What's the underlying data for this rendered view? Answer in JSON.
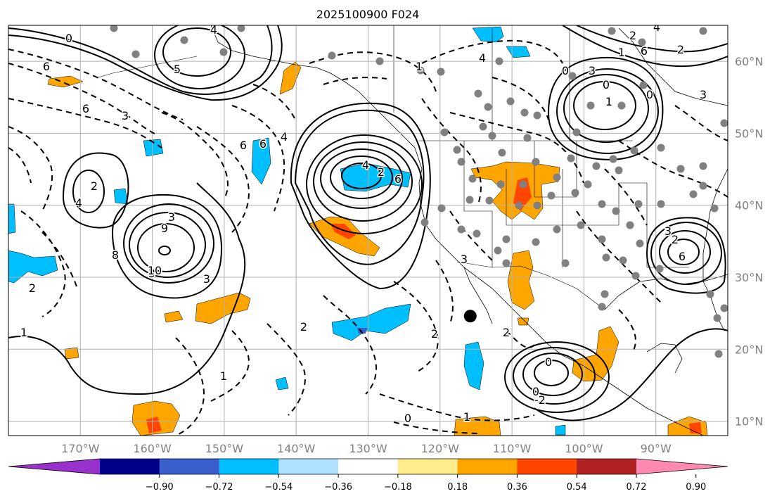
{
  "title": "2025100900 F024",
  "map": {
    "lon_range": [
      -180,
      -80
    ],
    "lat_range": [
      8,
      65
    ],
    "lon_ticks": [
      {
        "value": -170,
        "label": "170°W"
      },
      {
        "value": -160,
        "label": "160°W"
      },
      {
        "value": -150,
        "label": "150°W"
      },
      {
        "value": -140,
        "label": "140°W"
      },
      {
        "value": -130,
        "label": "130°W"
      },
      {
        "value": -120,
        "label": "120°W"
      },
      {
        "value": -110,
        "label": "110°W"
      },
      {
        "value": -100,
        "label": "100°W"
      },
      {
        "value": -90,
        "label": "90°W"
      }
    ],
    "lat_ticks": [
      {
        "value": 10,
        "label": "10°N"
      },
      {
        "value": 20,
        "label": "20°N"
      },
      {
        "value": 30,
        "label": "30°N"
      },
      {
        "value": 40,
        "label": "40°N"
      },
      {
        "value": 50,
        "label": "50°N"
      },
      {
        "value": 60,
        "label": "60°N"
      }
    ],
    "grid": true,
    "marker": {
      "lon": -115.8,
      "lat": 24.6
    }
  },
  "colorbar": {
    "colors": [
      "#9932cc",
      "#00008b",
      "#3a5fcd",
      "#00bfff",
      "#b0e2ff",
      "#ffffff",
      "#ffec8b",
      "#ffa500",
      "#ff4500",
      "#b22222",
      "#ff89b0"
    ],
    "tick_labels": [
      "−0.90",
      "−0.72",
      "−0.54",
      "−0.36",
      "−0.18",
      "0.18",
      "0.36",
      "0.54",
      "0.72",
      "0.90"
    ]
  },
  "contour_labels": [
    "0",
    "6",
    "2",
    "3",
    "4",
    "5",
    "2",
    "4",
    "6",
    "6",
    "3",
    "6",
    "4",
    "2",
    "6",
    "4",
    "3",
    "8",
    "10",
    "9",
    "4",
    "2",
    "1",
    "3",
    "2",
    "1",
    "2",
    "0",
    "1",
    "-2",
    "0",
    "1",
    "0",
    "0",
    "6",
    "3",
    "2",
    "3",
    "1",
    "0",
    "2",
    "3",
    "6",
    "4",
    "1",
    "3",
    "2",
    "0"
  ]
}
